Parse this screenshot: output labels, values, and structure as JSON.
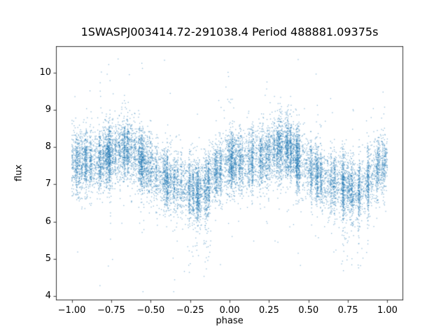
{
  "chart_data": {
    "type": "scatter",
    "title": "1SWASPJ003414.72-291038.4 Period 488881.09375s",
    "xlabel": "phase",
    "ylabel": "flux",
    "xlim": [
      -1.1,
      1.1
    ],
    "ylim": [
      3.89,
      10.71
    ],
    "grid": false,
    "legend": "none",
    "xticks": {
      "values": [
        -1.0,
        -0.75,
        -0.5,
        -0.25,
        0.0,
        0.25,
        0.5,
        0.75,
        1.0
      ],
      "labels": [
        "−1.00",
        "−0.75",
        "−0.50",
        "−0.25",
        "0.00",
        "0.25",
        "0.50",
        "0.75",
        "1.00"
      ]
    },
    "yticks": {
      "values": [
        4,
        5,
        6,
        7,
        8,
        9,
        10
      ],
      "labels": [
        "4",
        "5",
        "6",
        "7",
        "8",
        "9",
        "10"
      ]
    },
    "point_color": "#1f77b4",
    "point_alpha": 0.5,
    "marker_size_px": 1.3,
    "n_points": 14000,
    "phase_range": [
      -1.0,
      1.0
    ],
    "mean_profile": {
      "phase": [
        0.0,
        0.05,
        0.1,
        0.15,
        0.2,
        0.25,
        0.3,
        0.35,
        0.4,
        0.45,
        0.5,
        0.55,
        0.6,
        0.65,
        0.7,
        0.75,
        0.8,
        0.85,
        0.9,
        0.95,
        1.0
      ],
      "flux": [
        7.65,
        7.6,
        7.6,
        7.65,
        7.7,
        7.8,
        7.95,
        8.0,
        7.85,
        7.6,
        7.4,
        7.25,
        7.15,
        7.05,
        7.0,
        6.9,
        6.8,
        6.95,
        7.2,
        7.45,
        7.65
      ]
    },
    "noise_sigma": 0.42,
    "outlier_fraction": 0.02,
    "outlier_sigma": 1.4,
    "dip_tail": {
      "phase_min": 0.7,
      "phase_max": 0.88,
      "fraction": 0.05,
      "depth": 1.8
    },
    "streak_fraction": 0.6,
    "n_streaks": 150,
    "streak_width": 0.004,
    "flux_min": 4.1,
    "flux_max": 10.45
  }
}
